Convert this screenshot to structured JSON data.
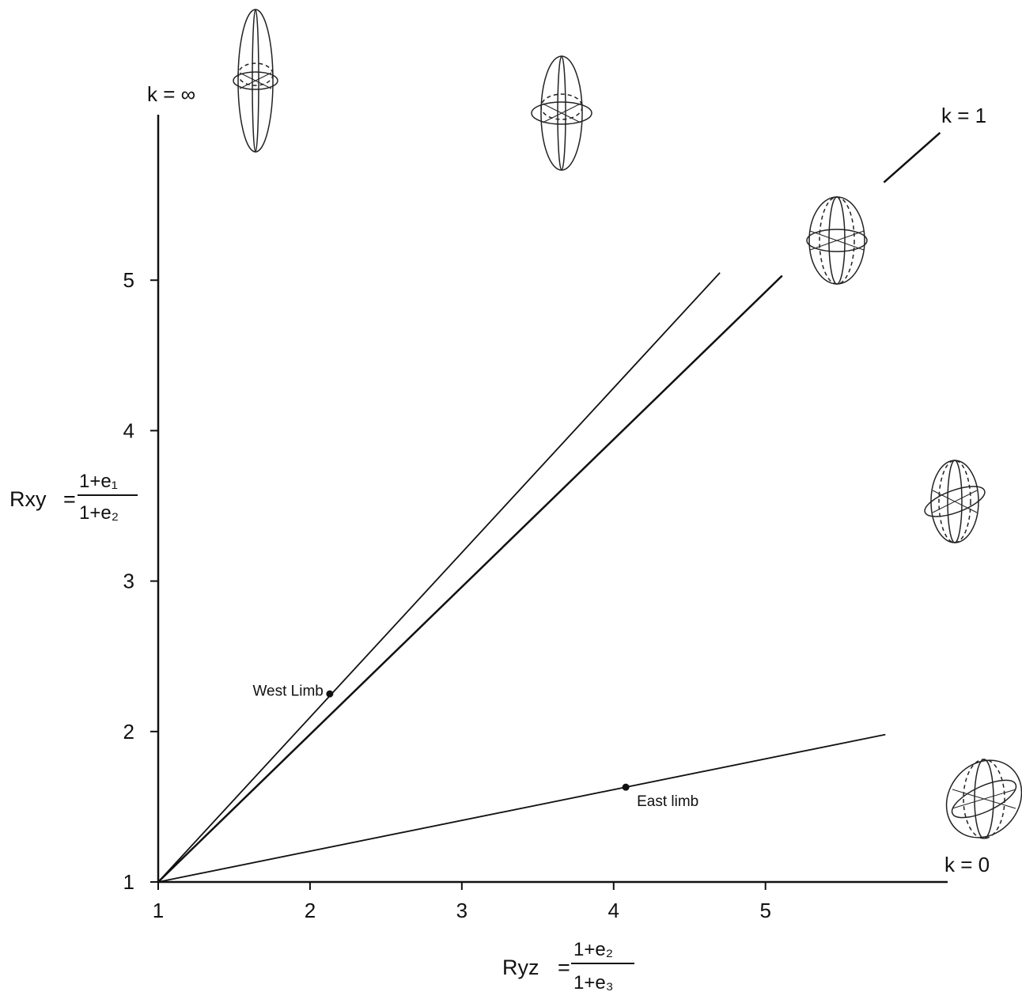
{
  "chart_data": {
    "type": "line",
    "xlim": [
      1,
      6.2
    ],
    "ylim": [
      1,
      6.1
    ],
    "xticks": [
      1,
      2,
      3,
      4,
      5
    ],
    "yticks": [
      1,
      2,
      3,
      4,
      5
    ],
    "x_label": {
      "lhs": "Ryz",
      "numerator": "1+e₂",
      "denominator": "1+e₃"
    },
    "y_label": {
      "lhs": "Rxy",
      "numerator": "1+e₁",
      "denominator": "1+e₂"
    },
    "annotations": [
      "k = ∞",
      "k = 1",
      "k = 0"
    ],
    "color": "#111111",
    "lines": [
      {
        "x": [
          1,
          5.11,
          5.45,
          5.78,
          6.15
        ],
        "y": [
          1,
          5.03,
          null,
          5.65,
          5.98
        ]
      },
      {
        "x": [
          1,
          4.7
        ],
        "y": [
          1,
          5.05
        ]
      },
      {
        "x": [
          1,
          5.79
        ],
        "y": [
          1,
          1.98
        ]
      }
    ],
    "points": [
      {
        "label": "West Limb",
        "x": 2.13,
        "y": 2.25
      },
      {
        "label": "East limb",
        "x": 4.08,
        "y": 1.63
      }
    ]
  }
}
